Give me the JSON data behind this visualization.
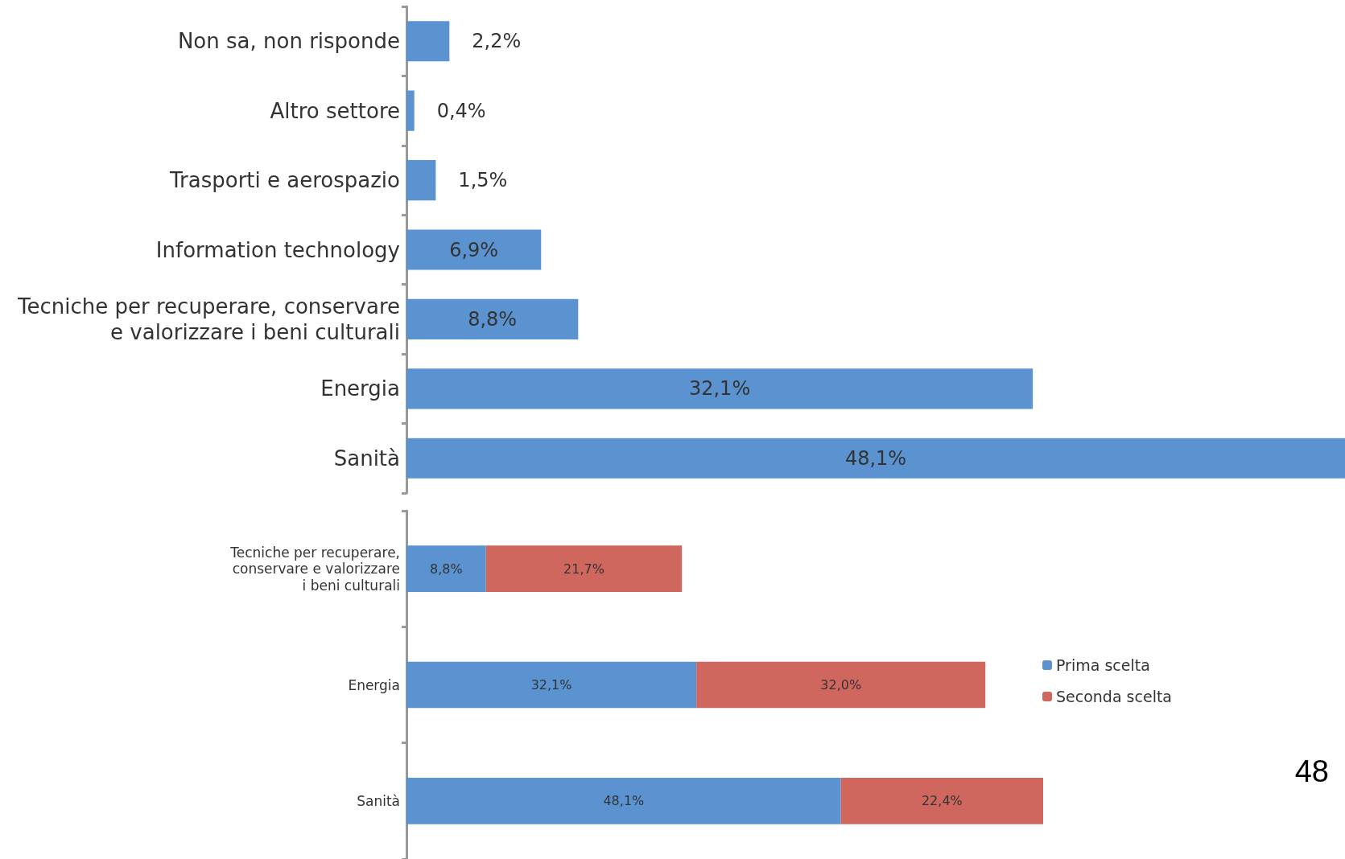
{
  "chart_data": [
    {
      "type": "bar",
      "orientation": "horizontal",
      "categories": [
        "Non sa, non risponde",
        "Altro settore",
        "Trasporti e aerospazio",
        "Information technology",
        "Tecniche per recuperare, conservare\ne valorizzare i beni culturali",
        "Energia",
        "Sanità"
      ],
      "values": [
        2.2,
        0.4,
        1.5,
        6.9,
        8.8,
        32.1,
        48.1
      ],
      "value_labels": [
        "2,2%",
        "0,4%",
        "1,5%",
        "6,9%",
        "8,8%",
        "32,1%",
        "48,1%"
      ],
      "color": "#5b93d0",
      "tick_labels": "y",
      "grid": false,
      "legend": false
    },
    {
      "type": "bar",
      "orientation": "horizontal",
      "stacked": true,
      "categories": [
        "Tecniche per recuperare,\nconservare e valorizzare\ni beni culturali",
        "Energia",
        "Sanità"
      ],
      "series": [
        {
          "name": "Prima scelta",
          "color": "#5b93d0",
          "values": [
            8.8,
            32.1,
            48.1
          ],
          "value_labels": [
            "8,8%",
            "32,1%",
            "48,1%"
          ]
        },
        {
          "name": "Seconda scelta",
          "color": "#d0675f",
          "values": [
            21.7,
            32.0,
            22.4
          ],
          "value_labels": [
            "21,7%",
            "32,0%",
            "22,4%"
          ]
        }
      ],
      "tick_labels": "y",
      "grid": false,
      "legend": "right",
      "annotations": [
        "48"
      ]
    }
  ]
}
